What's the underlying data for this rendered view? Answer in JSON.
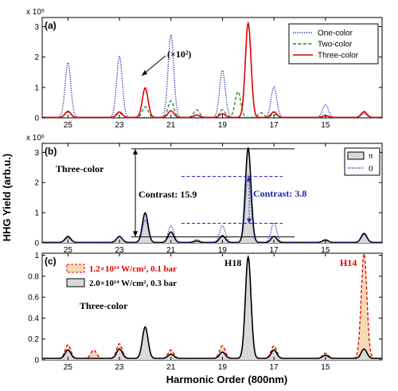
{
  "chart_data": [
    {
      "id": "a",
      "type": "line",
      "panel_label": "(a)",
      "exponent_label": "x 10⁶",
      "ylim": [
        0,
        3.3
      ],
      "yticks": [
        "0",
        "1",
        "2",
        "3"
      ],
      "xlim": [
        26,
        12.8
      ],
      "xticks": [
        "25",
        "23",
        "21",
        "19",
        "17",
        "15"
      ],
      "annotation": "(×10²)",
      "legend": {
        "placement": "top-right",
        "entries": [
          "One-color",
          "Two-color",
          "Three-color"
        ]
      },
      "series": [
        {
          "name": "One-color",
          "color": "#1f1fb0",
          "style": "dotted",
          "peaks": [
            [
              25,
              1.8
            ],
            [
              23,
              2.0
            ],
            [
              21,
              2.72
            ],
            [
              19,
              1.55
            ],
            [
              17,
              1.0
            ],
            [
              15,
              0.42
            ],
            [
              13.5,
              0.12
            ]
          ]
        },
        {
          "name": "Two-color",
          "color": "#1a8a1a",
          "style": "dashed",
          "peaks": [
            [
              25,
              0.18
            ],
            [
              23,
              0.14
            ],
            [
              22,
              0.35
            ],
            [
              21,
              0.55
            ],
            [
              20,
              0.25
            ],
            [
              19,
              0.25
            ],
            [
              18.4,
              0.85
            ],
            [
              17.5,
              0.15
            ],
            [
              17,
              0.1
            ],
            [
              15,
              0.05
            ],
            [
              13.5,
              0.2
            ]
          ]
        },
        {
          "name": "Three-color",
          "color": "#e00000",
          "style": "solid",
          "peaks": [
            [
              25,
              0.2
            ],
            [
              23,
              0.18
            ],
            [
              22,
              0.97
            ],
            [
              21,
              0.22
            ],
            [
              20,
              0.08
            ],
            [
              19,
              0.12
            ],
            [
              18,
              3.1
            ],
            [
              17,
              0.18
            ],
            [
              15,
              0.06
            ],
            [
              13.5,
              0.18
            ]
          ]
        }
      ]
    },
    {
      "id": "b",
      "type": "area",
      "panel_label": "(b)",
      "exponent_label": "x 10⁶",
      "ylim": [
        0,
        3.3
      ],
      "yticks": [
        "0",
        "1",
        "2",
        "3"
      ],
      "xlim": [
        26,
        12.8
      ],
      "xticks": [
        "25",
        "23",
        "21",
        "19",
        "17",
        "15"
      ],
      "inner_label": "Three-color",
      "contrast_black": "Contrast: 15.9",
      "contrast_blue": "Contrast: 3.8",
      "legend": {
        "placement": "top-right",
        "entries": [
          "π",
          "0"
        ]
      },
      "series": [
        {
          "name": "π",
          "color": "#000000",
          "fill": "#d9d9d9",
          "style": "solid",
          "peaks": [
            [
              25,
              0.2
            ],
            [
              23,
              0.2
            ],
            [
              22,
              0.98
            ],
            [
              21,
              0.35
            ],
            [
              20,
              0.05
            ],
            [
              19,
              0.22
            ],
            [
              18,
              3.12
            ],
            [
              17,
              0.2
            ],
            [
              15,
              0.08
            ],
            [
              13.5,
              0.3
            ]
          ]
        },
        {
          "name": "0",
          "color": "#1f1fb0",
          "style": "dotted",
          "peaks": [
            [
              25,
              0.15
            ],
            [
              23,
              0.18
            ],
            [
              22,
              0.75
            ],
            [
              21,
              0.55
            ],
            [
              20,
              0.1
            ],
            [
              19,
              0.55
            ],
            [
              18,
              2.2
            ],
            [
              17,
              0.65
            ],
            [
              15,
              0.1
            ],
            [
              13.5,
              0.25
            ]
          ]
        }
      ]
    },
    {
      "id": "c",
      "type": "area",
      "panel_label": "(c)",
      "ylim": [
        0,
        1.02
      ],
      "yticks": [
        "0",
        "0.2",
        "0.4",
        "0.6",
        "0.8",
        "1"
      ],
      "xlim": [
        26,
        12.8
      ],
      "xticks": [
        "25",
        "23",
        "21",
        "19",
        "17",
        "15"
      ],
      "inner_label": "Three-color",
      "peak_label_black": "H18",
      "peak_label_red": "H14",
      "legend": {
        "placement": "top-left",
        "entries": [
          "1.2×10¹⁴ W/cm², 0.1 bar",
          "2.0×10¹⁴ W/cm², 0.3 bar"
        ]
      },
      "series": [
        {
          "name": "1.2×10¹⁴ W/cm², 0.1 bar",
          "color": "#e00000",
          "fill": "#f7d9b5",
          "style": "dashed",
          "peaks": [
            [
              25,
              0.13
            ],
            [
              24,
              0.08
            ],
            [
              23,
              0.14
            ],
            [
              22,
              0.25
            ],
            [
              21,
              0.08
            ],
            [
              19,
              0.12
            ],
            [
              18,
              0.35
            ],
            [
              17,
              0.12
            ],
            [
              15,
              0.05
            ],
            [
              13.5,
              1.0
            ]
          ]
        },
        {
          "name": "2.0×10¹⁴ W/cm², 0.3 bar",
          "color": "#000000",
          "fill": "#d9d9d9",
          "style": "solid",
          "peaks": [
            [
              25,
              0.08
            ],
            [
              23,
              0.09
            ],
            [
              22,
              0.3
            ],
            [
              21,
              0.04
            ],
            [
              19,
              0.06
            ],
            [
              18,
              0.97
            ],
            [
              17,
              0.08
            ],
            [
              15,
              0.03
            ],
            [
              13.5,
              0.09
            ]
          ]
        }
      ]
    }
  ],
  "shared": {
    "ylabel": "HHG Yield (arb.u.)",
    "xlabel": "Harmonic Order (800nm)"
  }
}
